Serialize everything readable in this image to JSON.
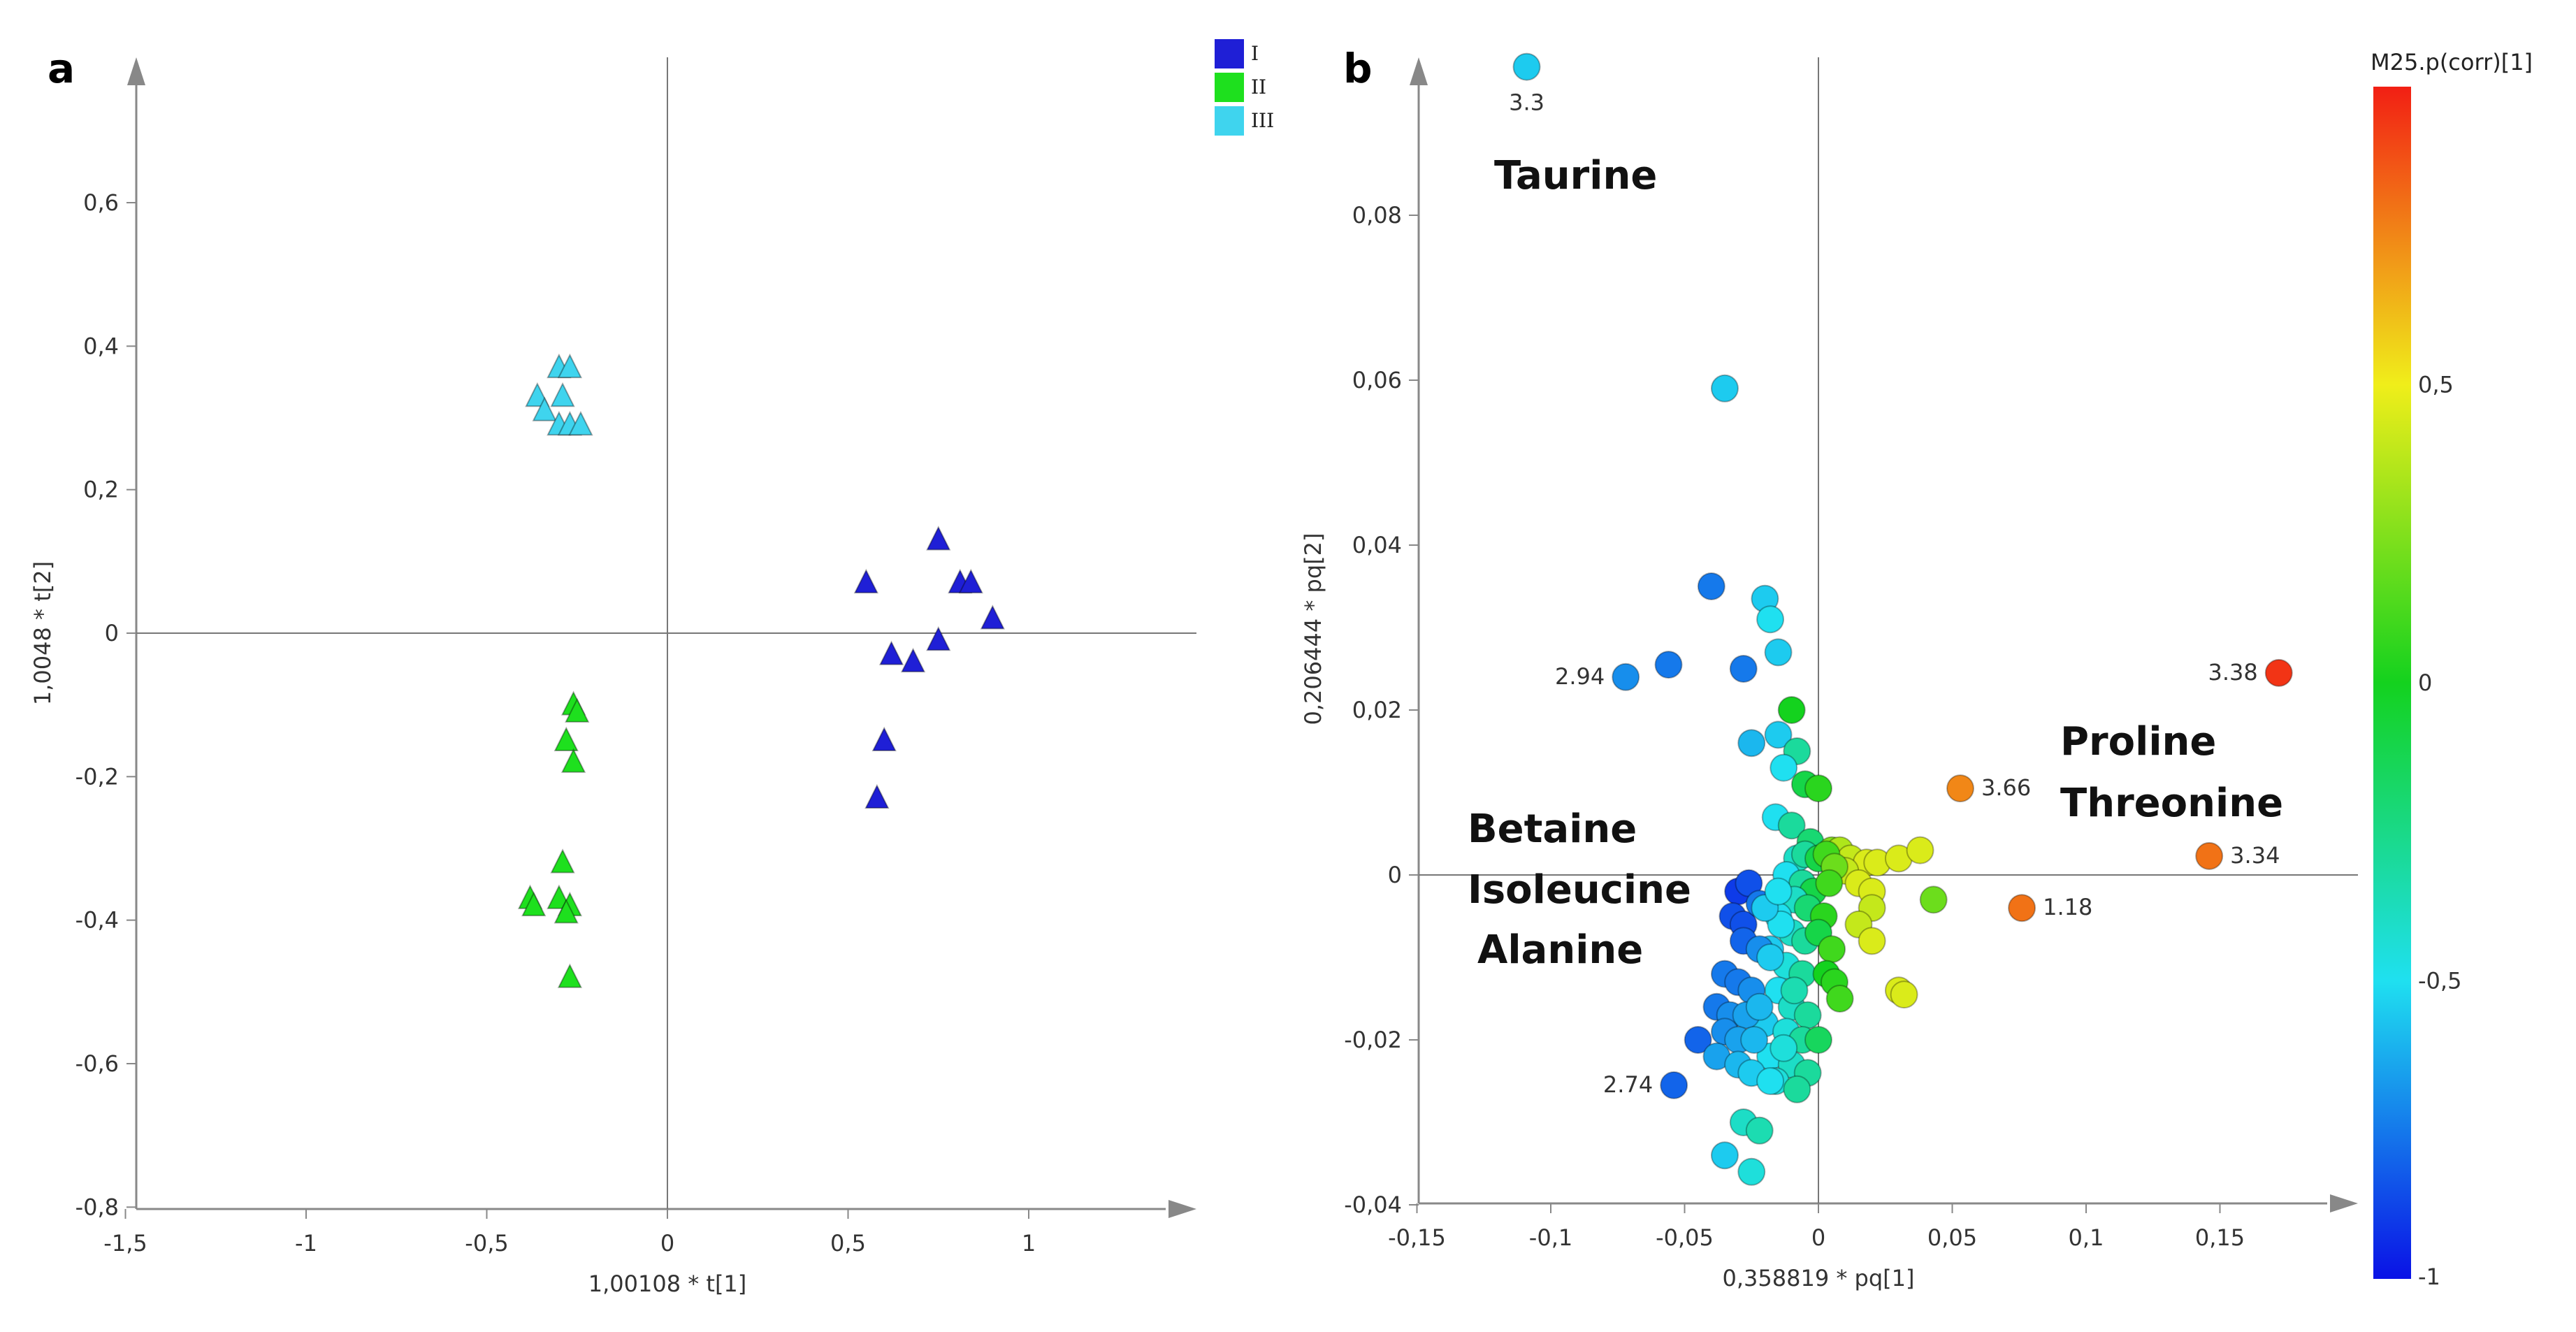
{
  "chart_data": [
    {
      "type": "scatter",
      "panel_label": "a",
      "xlabel": "1,00108 * t[1]",
      "ylabel": "1,0048 * t[2]",
      "xlim": [
        -1.5,
        1.5
      ],
      "ylim": [
        -0.8,
        0.8
      ],
      "x_ticks": [
        -1.5,
        -1,
        -0.5,
        0,
        0.5,
        1
      ],
      "x_tick_labels": [
        "-1,5",
        "-1",
        "-0,5",
        "0",
        "0,5",
        "1"
      ],
      "y_ticks": [
        -0.8,
        -0.6,
        -0.4,
        -0.2,
        0,
        0.2,
        0.4,
        0.6
      ],
      "y_tick_labels": [
        "-0,8",
        "-0,6",
        "-0,4",
        "-0,2",
        "0",
        "0,2",
        "0,4",
        "0,6"
      ],
      "legend_position": "top-right",
      "series": [
        {
          "name": "I",
          "color": "#1f1fd6",
          "marker": "triangle",
          "points": [
            [
              0.55,
              0.07
            ],
            [
              0.75,
              0.13
            ],
            [
              0.81,
              0.07
            ],
            [
              0.84,
              0.07
            ],
            [
              0.9,
              0.02
            ],
            [
              0.62,
              -0.03
            ],
            [
              0.68,
              -0.04
            ],
            [
              0.75,
              -0.01
            ],
            [
              0.6,
              -0.15
            ],
            [
              0.58,
              -0.23
            ]
          ]
        },
        {
          "name": "II",
          "color": "#1ee01e",
          "marker": "triangle",
          "points": [
            [
              -0.26,
              -0.1
            ],
            [
              -0.25,
              -0.11
            ],
            [
              -0.28,
              -0.15
            ],
            [
              -0.26,
              -0.18
            ],
            [
              -0.29,
              -0.32
            ],
            [
              -0.38,
              -0.37
            ],
            [
              -0.37,
              -0.38
            ],
            [
              -0.3,
              -0.37
            ],
            [
              -0.27,
              -0.38
            ],
            [
              -0.28,
              -0.39
            ],
            [
              -0.27,
              -0.48
            ]
          ]
        },
        {
          "name": "III",
          "color": "#3fd4ee",
          "marker": "triangle",
          "points": [
            [
              -0.3,
              0.37
            ],
            [
              -0.27,
              0.37
            ],
            [
              -0.29,
              0.33
            ],
            [
              -0.36,
              0.33
            ],
            [
              -0.34,
              0.31
            ],
            [
              -0.3,
              0.29
            ],
            [
              -0.27,
              0.29
            ],
            [
              -0.24,
              0.29
            ]
          ]
        }
      ]
    },
    {
      "type": "scatter",
      "panel_label": "b",
      "xlabel": "0,358819 * pq[1]",
      "ylabel": "0,206444 * pq[2]",
      "xlim": [
        -0.15,
        0.2
      ],
      "ylim": [
        -0.04,
        0.1
      ],
      "x_ticks": [
        -0.15,
        -0.1,
        -0.05,
        0,
        0.05,
        0.1,
        0.15
      ],
      "x_tick_labels": [
        "-0,15",
        "-0,1",
        "-0,05",
        "0",
        "0,05",
        "0,1",
        "0,15"
      ],
      "y_ticks": [
        -0.04,
        -0.02,
        0,
        0.02,
        0.04,
        0.06,
        0.08
      ],
      "y_tick_labels": [
        "-0,04",
        "-0,02",
        "0",
        "0,02",
        "0,04",
        "0,06",
        "0,08"
      ],
      "colorbar": {
        "title": "M25.p(corr)[1]",
        "range": [
          -1,
          1
        ],
        "ticks": [
          -1,
          -0.5,
          0,
          0.5
        ],
        "tick_labels": [
          "-1",
          "-0,5",
          "0",
          "0,5"
        ]
      },
      "annotations": [
        {
          "text": "Taurine",
          "x": -0.09,
          "y": 0.085
        },
        {
          "text": "Betaine",
          "x": -0.12,
          "y": 0.006
        },
        {
          "text": "Isoleucine",
          "x": -0.12,
          "y": -0.0015
        },
        {
          "text": "Alanine",
          "x": -0.12,
          "y": -0.009
        },
        {
          "text": "Proline",
          "x": 0.1,
          "y": 0.015
        },
        {
          "text": "Threonine",
          "x": 0.1,
          "y": 0.008
        }
      ],
      "labeled_points": [
        {
          "label": "3.3",
          "x": -0.109,
          "y": 0.098,
          "corr": -0.55
        },
        {
          "label": "2.94",
          "x": -0.072,
          "y": 0.024,
          "corr": -0.7
        },
        {
          "label": "2.74",
          "x": -0.054,
          "y": -0.0255,
          "corr": -0.8
        },
        {
          "label": "3.38",
          "x": 0.172,
          "y": 0.0245,
          "corr": 0.95
        },
        {
          "label": "3.66",
          "x": 0.053,
          "y": 0.0105,
          "corr": 0.75
        },
        {
          "label": "3.34",
          "x": 0.146,
          "y": 0.0023,
          "corr": 0.8
        },
        {
          "label": "1.18",
          "x": 0.076,
          "y": -0.004,
          "corr": 0.8
        }
      ],
      "points": [
        [
          -0.035,
          0.059,
          -0.55
        ],
        [
          -0.04,
          0.035,
          -0.75
        ],
        [
          -0.02,
          0.0335,
          -0.55
        ],
        [
          -0.018,
          0.031,
          -0.5
        ],
        [
          -0.056,
          0.0255,
          -0.75
        ],
        [
          -0.028,
          0.025,
          -0.75
        ],
        [
          -0.015,
          0.027,
          -0.55
        ],
        [
          -0.01,
          0.02,
          0.0
        ],
        [
          -0.025,
          0.016,
          -0.6
        ],
        [
          -0.015,
          0.017,
          -0.55
        ],
        [
          -0.008,
          0.015,
          -0.3
        ],
        [
          -0.013,
          0.013,
          -0.5
        ],
        [
          -0.005,
          0.011,
          -0.1
        ],
        [
          0.0,
          0.0105,
          0.05
        ],
        [
          -0.016,
          0.007,
          -0.5
        ],
        [
          -0.01,
          0.006,
          -0.3
        ],
        [
          -0.003,
          0.004,
          -0.2
        ],
        [
          0.005,
          0.003,
          0.25
        ],
        [
          0.008,
          0.003,
          0.35
        ],
        [
          0.012,
          0.002,
          0.4
        ],
        [
          0.018,
          0.0015,
          0.45
        ],
        [
          0.022,
          0.0015,
          0.45
        ],
        [
          0.01,
          0.0005,
          0.4
        ],
        [
          0.015,
          -0.001,
          0.45
        ],
        [
          0.02,
          -0.002,
          0.45
        ],
        [
          0.03,
          0.002,
          0.45
        ],
        [
          0.038,
          0.003,
          0.45
        ],
        [
          0.043,
          -0.003,
          0.2
        ],
        [
          0.02,
          -0.004,
          0.4
        ],
        [
          0.015,
          -0.006,
          0.4
        ],
        [
          0.02,
          -0.008,
          0.45
        ],
        [
          0.03,
          -0.014,
          0.45
        ],
        [
          0.032,
          -0.0145,
          0.45
        ],
        [
          -0.008,
          0.002,
          -0.4
        ],
        [
          -0.005,
          0.0025,
          -0.3
        ],
        [
          0.0,
          0.002,
          -0.1
        ],
        [
          0.003,
          0.0025,
          0.1
        ],
        [
          0.006,
          0.001,
          0.2
        ],
        [
          -0.012,
          0.0,
          -0.5
        ],
        [
          -0.006,
          -0.001,
          -0.3
        ],
        [
          -0.002,
          -0.002,
          -0.1
        ],
        [
          0.004,
          -0.001,
          0.1
        ],
        [
          -0.009,
          -0.003,
          -0.4
        ],
        [
          -0.004,
          -0.004,
          -0.2
        ],
        [
          0.002,
          -0.005,
          0.05
        ],
        [
          -0.015,
          -0.005,
          -0.5
        ],
        [
          -0.01,
          -0.007,
          -0.4
        ],
        [
          -0.005,
          -0.008,
          -0.3
        ],
        [
          0.0,
          -0.007,
          -0.1
        ],
        [
          0.005,
          -0.009,
          0.1
        ],
        [
          -0.018,
          -0.009,
          -0.55
        ],
        [
          -0.012,
          -0.011,
          -0.45
        ],
        [
          -0.006,
          -0.012,
          -0.3
        ],
        [
          0.003,
          -0.012,
          0.0
        ],
        [
          0.006,
          -0.013,
          0.05
        ],
        [
          0.008,
          -0.015,
          0.1
        ],
        [
          -0.015,
          -0.014,
          -0.5
        ],
        [
          -0.01,
          -0.016,
          -0.4
        ],
        [
          -0.004,
          -0.017,
          -0.3
        ],
        [
          -0.02,
          -0.018,
          -0.55
        ],
        [
          -0.012,
          -0.019,
          -0.45
        ],
        [
          -0.006,
          -0.02,
          -0.3
        ],
        [
          0.0,
          -0.02,
          -0.15
        ],
        [
          -0.018,
          -0.022,
          -0.5
        ],
        [
          -0.01,
          -0.023,
          -0.4
        ],
        [
          -0.004,
          -0.024,
          -0.3
        ],
        [
          -0.016,
          -0.025,
          -0.45
        ],
        [
          -0.008,
          -0.026,
          -0.3
        ],
        [
          -0.03,
          -0.002,
          -0.9
        ],
        [
          -0.026,
          -0.001,
          -0.85
        ],
        [
          -0.032,
          -0.005,
          -0.85
        ],
        [
          -0.028,
          -0.006,
          -0.85
        ],
        [
          -0.022,
          -0.0035,
          -0.75
        ],
        [
          -0.028,
          -0.008,
          -0.8
        ],
        [
          -0.022,
          -0.009,
          -0.7
        ],
        [
          -0.035,
          -0.012,
          -0.75
        ],
        [
          -0.03,
          -0.013,
          -0.75
        ],
        [
          -0.025,
          -0.014,
          -0.7
        ],
        [
          -0.038,
          -0.016,
          -0.75
        ],
        [
          -0.033,
          -0.017,
          -0.7
        ],
        [
          -0.027,
          -0.017,
          -0.65
        ],
        [
          -0.022,
          -0.016,
          -0.6
        ],
        [
          -0.035,
          -0.019,
          -0.7
        ],
        [
          -0.03,
          -0.02,
          -0.65
        ],
        [
          -0.024,
          -0.02,
          -0.6
        ],
        [
          -0.045,
          -0.02,
          -0.8
        ],
        [
          -0.038,
          -0.022,
          -0.65
        ],
        [
          -0.03,
          -0.023,
          -0.6
        ],
        [
          -0.025,
          -0.024,
          -0.55
        ],
        [
          -0.028,
          -0.03,
          -0.4
        ],
        [
          -0.022,
          -0.031,
          -0.35
        ],
        [
          -0.035,
          -0.034,
          -0.55
        ],
        [
          -0.025,
          -0.036,
          -0.45
        ],
        [
          -0.018,
          -0.025,
          -0.5
        ],
        [
          -0.013,
          -0.021,
          -0.45
        ],
        [
          -0.009,
          -0.014,
          -0.35
        ],
        [
          -0.018,
          -0.01,
          -0.55
        ],
        [
          -0.014,
          -0.006,
          -0.5
        ],
        [
          -0.02,
          -0.004,
          -0.55
        ],
        [
          -0.015,
          -0.002,
          -0.5
        ]
      ]
    }
  ]
}
